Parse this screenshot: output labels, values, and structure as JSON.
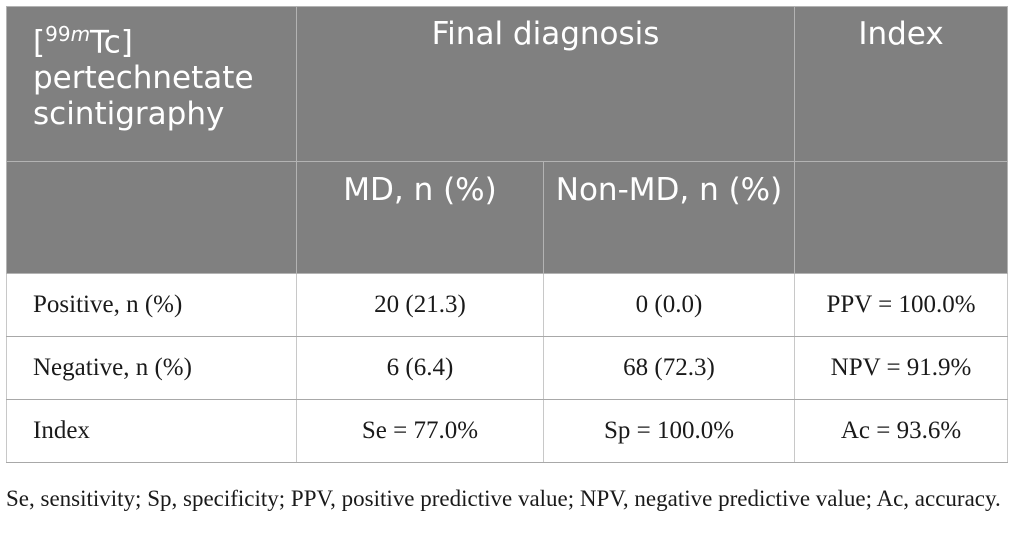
{
  "table": {
    "header": {
      "col0_prefix": "[",
      "col0_sup_num": "99",
      "col0_sup_letter": "m",
      "col0_after_sup": "Tc]",
      "col0_line2": "pertechnetate",
      "col0_line3": "scintigraphy",
      "final_diagnosis": "Final diagnosis",
      "index": "Index",
      "md": "MD, n (%)",
      "non_md": "Non-MD, n (%)"
    },
    "rows": [
      {
        "label": "Positive, n (%)",
        "md": "20 (21.3)",
        "non_md": "0 (0.0)",
        "index": "PPV = 100.0%"
      },
      {
        "label": "Negative, n (%)",
        "md": "6 (6.4)",
        "non_md": "68 (72.3)",
        "index": "NPV = 91.9%"
      },
      {
        "label": "Index",
        "md": "Se = 77.0%",
        "non_md": "Sp = 100.0%",
        "index": "Ac = 93.6%"
      }
    ]
  },
  "footnote": "Se, sensitivity; Sp, specificity; PPV, positive predictive value; NPV, negative predictive value; Ac, accuracy."
}
